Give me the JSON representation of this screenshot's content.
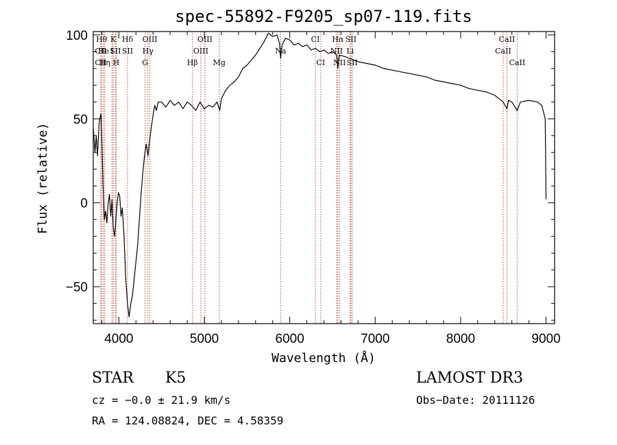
{
  "chart_data": {
    "type": "line",
    "title": "spec-55892-F9205_sp07-119.fits",
    "xlabel": "Wavelength (Å)",
    "ylabel": "Flux (relative)",
    "xlim": [
      3700,
      9100
    ],
    "ylim": [
      -72,
      102
    ],
    "x_ticks": [
      4000,
      5000,
      6000,
      7000,
      8000,
      9000
    ],
    "y_ticks": [
      -50,
      0,
      50,
      100
    ],
    "series": [
      {
        "name": "flux",
        "points": [
          [
            3700,
            45
          ],
          [
            3720,
            30
          ],
          [
            3735,
            40
          ],
          [
            3750,
            28
          ],
          [
            3770,
            48
          ],
          [
            3790,
            53
          ],
          [
            3800,
            38
          ],
          [
            3815,
            10
          ],
          [
            3830,
            -10
          ],
          [
            3845,
            -5
          ],
          [
            3860,
            -12
          ],
          [
            3875,
            0
          ],
          [
            3890,
            5
          ],
          [
            3905,
            -8
          ],
          [
            3920,
            2
          ],
          [
            3935,
            -15
          ],
          [
            3950,
            -20
          ],
          [
            3965,
            -10
          ],
          [
            3980,
            0
          ],
          [
            3995,
            6
          ],
          [
            4010,
            4
          ],
          [
            4025,
            -8
          ],
          [
            4040,
            -3
          ],
          [
            4060,
            -20
          ],
          [
            4080,
            -45
          ],
          [
            4100,
            -60
          ],
          [
            4120,
            -68
          ],
          [
            4140,
            -60
          ],
          [
            4160,
            -55
          ],
          [
            4180,
            -45
          ],
          [
            4200,
            -35
          ],
          [
            4220,
            -25
          ],
          [
            4240,
            -10
          ],
          [
            4260,
            5
          ],
          [
            4280,
            18
          ],
          [
            4300,
            28
          ],
          [
            4320,
            35
          ],
          [
            4340,
            28
          ],
          [
            4360,
            37
          ],
          [
            4380,
            45
          ],
          [
            4400,
            52
          ],
          [
            4420,
            58
          ],
          [
            4440,
            55
          ],
          [
            4460,
            60
          ],
          [
            4500,
            60
          ],
          [
            4550,
            57
          ],
          [
            4600,
            61
          ],
          [
            4650,
            58
          ],
          [
            4700,
            60
          ],
          [
            4750,
            56
          ],
          [
            4800,
            60
          ],
          [
            4850,
            58
          ],
          [
            4900,
            55
          ],
          [
            4950,
            60
          ],
          [
            5000,
            56
          ],
          [
            5050,
            58
          ],
          [
            5100,
            57
          ],
          [
            5150,
            60
          ],
          [
            5180,
            55
          ],
          [
            5200,
            62
          ],
          [
            5250,
            67
          ],
          [
            5300,
            70
          ],
          [
            5350,
            72
          ],
          [
            5400,
            75
          ],
          [
            5450,
            80
          ],
          [
            5500,
            82
          ],
          [
            5550,
            85
          ],
          [
            5600,
            88
          ],
          [
            5650,
            92
          ],
          [
            5700,
            96
          ],
          [
            5750,
            101
          ],
          [
            5800,
            99
          ],
          [
            5850,
            100
          ],
          [
            5880,
            95
          ],
          [
            5893,
            86
          ],
          [
            5910,
            94
          ],
          [
            5950,
            98
          ],
          [
            6000,
            97
          ],
          [
            6050,
            94
          ],
          [
            6100,
            95
          ],
          [
            6150,
            93
          ],
          [
            6200,
            94
          ],
          [
            6250,
            91
          ],
          [
            6300,
            92
          ],
          [
            6350,
            90
          ],
          [
            6400,
            91
          ],
          [
            6450,
            89
          ],
          [
            6500,
            90
          ],
          [
            6550,
            88
          ],
          [
            6563,
            80
          ],
          [
            6580,
            88
          ],
          [
            6650,
            87
          ],
          [
            6700,
            86
          ],
          [
            6750,
            85
          ],
          [
            6800,
            84
          ],
          [
            6900,
            83
          ],
          [
            7000,
            82
          ],
          [
            7100,
            80
          ],
          [
            7200,
            79
          ],
          [
            7300,
            78
          ],
          [
            7400,
            77
          ],
          [
            7500,
            76
          ],
          [
            7600,
            75
          ],
          [
            7700,
            73
          ],
          [
            7800,
            72
          ],
          [
            7900,
            71
          ],
          [
            8000,
            70
          ],
          [
            8100,
            68
          ],
          [
            8200,
            67
          ],
          [
            8300,
            66
          ],
          [
            8400,
            64
          ],
          [
            8498,
            60
          ],
          [
            8542,
            56
          ],
          [
            8560,
            61
          ],
          [
            8600,
            60
          ],
          [
            8662,
            55
          ],
          [
            8700,
            60
          ],
          [
            8800,
            61
          ],
          [
            8900,
            60
          ],
          [
            8950,
            58
          ],
          [
            8990,
            50
          ],
          [
            9000,
            2
          ]
        ]
      }
    ],
    "line_markers": [
      {
        "label": "Hθ",
        "x": 3798,
        "row": 1
      },
      {
        "label": "CII",
        "x": 3788,
        "row": 2
      },
      {
        "label": "CII",
        "x": 3788,
        "row": 3
      },
      {
        "label": "He",
        "x": 3820,
        "row": 2
      },
      {
        "label": "Hη",
        "x": 3835,
        "row": 3
      },
      {
        "label": "K",
        "x": 3934,
        "row": 1
      },
      {
        "label": "I",
        "x": 3920,
        "row": 2
      },
      {
        "label": "SII",
        "x": 3960,
        "row": 2
      },
      {
        "label": "H",
        "x": 3968,
        "row": 3
      },
      {
        "label": "Hδ",
        "x": 4101,
        "row": 1
      },
      {
        "label": "SII",
        "x": 4101,
        "row": 2
      },
      {
        "label": "OIII",
        "x": 4363,
        "row": 1
      },
      {
        "label": "Hγ",
        "x": 4340,
        "row": 2
      },
      {
        "label": "G",
        "x": 4307,
        "row": 3
      },
      {
        "label": "OIII",
        "x": 5007,
        "row": 1
      },
      {
        "label": "OIII",
        "x": 4959,
        "row": 2
      },
      {
        "label": "Hβ",
        "x": 4861,
        "row": 3
      },
      {
        "label": "Mg",
        "x": 5175,
        "row": 3
      },
      {
        "label": "Na",
        "x": 5893,
        "row": 2
      },
      {
        "label": "CI",
        "x": 6300,
        "row": 1
      },
      {
        "label": "CI",
        "x": 6363,
        "row": 3
      },
      {
        "label": "Hα",
        "x": 6563,
        "row": 1
      },
      {
        "label": "SII",
        "x": 6716,
        "row": 1
      },
      {
        "label": "NII",
        "x": 6548,
        "row": 2
      },
      {
        "label": "Li",
        "x": 6707,
        "row": 2
      },
      {
        "label": "NII",
        "x": 6583,
        "row": 3
      },
      {
        "label": "SII",
        "x": 6731,
        "row": 3
      },
      {
        "label": "CaII",
        "x": 8542,
        "row": 1
      },
      {
        "label": "CaII",
        "x": 8498,
        "row": 2
      },
      {
        "label": "CaII",
        "x": 8662,
        "row": 3
      }
    ]
  },
  "info": {
    "class": "STAR",
    "subclass": "K5",
    "survey": "LAMOST DR3",
    "cz": "cz = −0.0 ± 21.9 km/s",
    "obs_date": "Obs−Date: 20111126",
    "coords": "RA = 124.08824, DEC =   4.58359"
  },
  "colors": {
    "line": "#000000",
    "marker": "#c0392b",
    "axes": "#000000"
  }
}
